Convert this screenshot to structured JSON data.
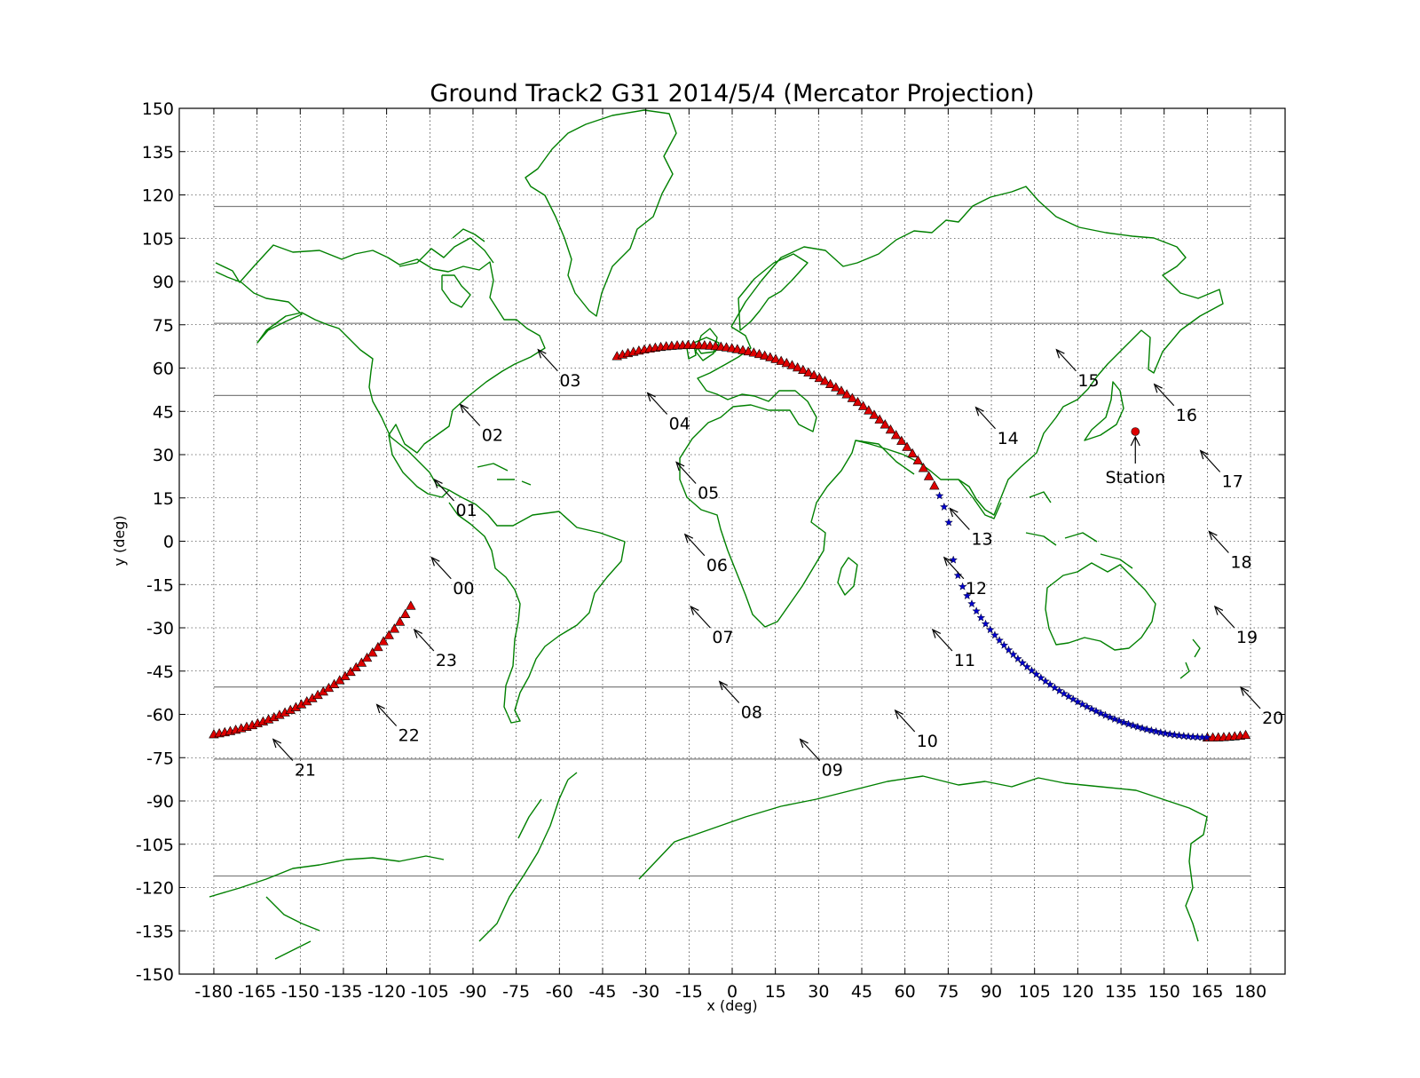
{
  "chart_data": {
    "type": "scatter",
    "title": "Ground Track2 G31 2014/5/4 (Mercator Projection)",
    "xlabel": "x (deg)",
    "ylabel": "y (deg)",
    "xlim": [
      -192,
      192
    ],
    "ylim": [
      -150,
      150
    ],
    "xticks": [
      -180,
      -165,
      -150,
      -135,
      -120,
      -105,
      -90,
      -75,
      -60,
      -45,
      -30,
      -15,
      0,
      15,
      30,
      45,
      60,
      75,
      90,
      105,
      120,
      135,
      150,
      165,
      180
    ],
    "yticks": [
      150,
      135,
      120,
      105,
      90,
      75,
      60,
      45,
      30,
      15,
      0,
      -15,
      -30,
      -45,
      -60,
      -75,
      -90,
      -105,
      -120,
      -135,
      -150
    ],
    "grid": true,
    "colors": {
      "visible": "#0000cc",
      "not_visible": "#dd0000",
      "coastline": "#008000",
      "station": "#dd0000",
      "latitude_lines": "#808080"
    },
    "latitude_lines_y": [
      116,
      75.5,
      50.5,
      -50.5,
      -75.5,
      -116
    ],
    "series": [
      {
        "marker": "triangle",
        "color": "#dd0000",
        "segments": [
          [
            -180,
            -110
          ],
          [
            -40,
            72
          ],
          [
            165,
            180
          ]
        ]
      },
      {
        "marker": "star",
        "color": "#0000cc",
        "segments": [
          [
            72,
            165
          ]
        ]
      }
    ],
    "track_points": [
      {
        "label": "00",
        "x": -105,
        "y": -5
      },
      {
        "label": "01",
        "x": -104,
        "y": 22
      },
      {
        "label": "02",
        "x": -95,
        "y": 48
      },
      {
        "label": "03",
        "x": -68,
        "y": 67
      },
      {
        "label": "04",
        "x": -30,
        "y": 52
      },
      {
        "label": "05",
        "x": -20,
        "y": 28
      },
      {
        "label": "06",
        "x": -17,
        "y": 3
      },
      {
        "label": "07",
        "x": -15,
        "y": -22
      },
      {
        "label": "08",
        "x": -5,
        "y": -48
      },
      {
        "label": "09",
        "x": 23,
        "y": -68
      },
      {
        "label": "10",
        "x": 56,
        "y": -58
      },
      {
        "label": "11",
        "x": 69,
        "y": -30
      },
      {
        "label": "12",
        "x": 73,
        "y": -5
      },
      {
        "label": "13",
        "x": 75,
        "y": 12
      },
      {
        "label": "14",
        "x": 84,
        "y": 47
      },
      {
        "label": "15",
        "x": 112,
        "y": 67
      },
      {
        "label": "16",
        "x": 146,
        "y": 55
      },
      {
        "label": "17",
        "x": 162,
        "y": 32
      },
      {
        "label": "18",
        "x": 165,
        "y": 4
      },
      {
        "label": "19",
        "x": 167,
        "y": -22
      },
      {
        "label": "20",
        "x": 176,
        "y": -50
      },
      {
        "label": "21",
        "x": -160,
        "y": -68
      },
      {
        "label": "22",
        "x": -124,
        "y": -56
      },
      {
        "label": "23",
        "x": -111,
        "y": -30
      }
    ],
    "station": {
      "label": "Station",
      "x": 140,
      "y": 38
    }
  }
}
